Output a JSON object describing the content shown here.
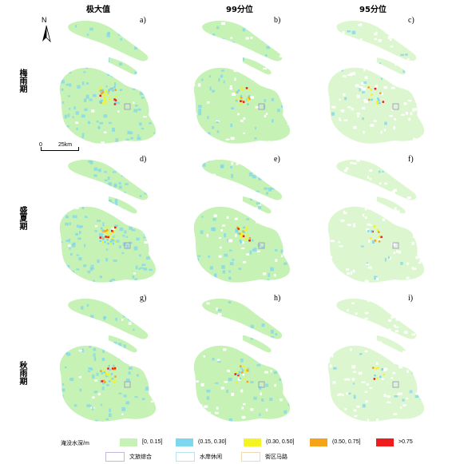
{
  "column_headers": [
    "极大值",
    "99分位",
    "95分位"
  ],
  "row_headers": [
    "梅雨期",
    "盛夏期",
    "秋雨期"
  ],
  "panel_labels": [
    "a)",
    "b)",
    "c)",
    "d)",
    "e)",
    "f)",
    "g)",
    "h)",
    "i)"
  ],
  "north_label": "N",
  "scale": {
    "start": "0",
    "end": "25km"
  },
  "legend": {
    "title": "淹没水深/m",
    "classes": [
      {
        "label": "[0, 0.15]",
        "color": "#c6f2b5"
      },
      {
        "label": "(0.15, 0.30]",
        "color": "#7fd6ef"
      },
      {
        "label": "(0.30, 0.50]",
        "color": "#f4f420"
      },
      {
        "label": "(0.50, 0.75]",
        "color": "#f5a41a"
      },
      {
        "label": ">0.75",
        "color": "#ee1c1c"
      }
    ],
    "outlines": [
      {
        "label": "文旅综合",
        "color": "#c8b8e0"
      },
      {
        "label": "水岸休闲",
        "color": "#b6e4f0"
      },
      {
        "label": "街区马路",
        "color": "#f0d9b0"
      }
    ]
  },
  "colors": {
    "land": "#c6f2b5",
    "land_light": "#dcf7d0",
    "hole": "#ffffff"
  }
}
